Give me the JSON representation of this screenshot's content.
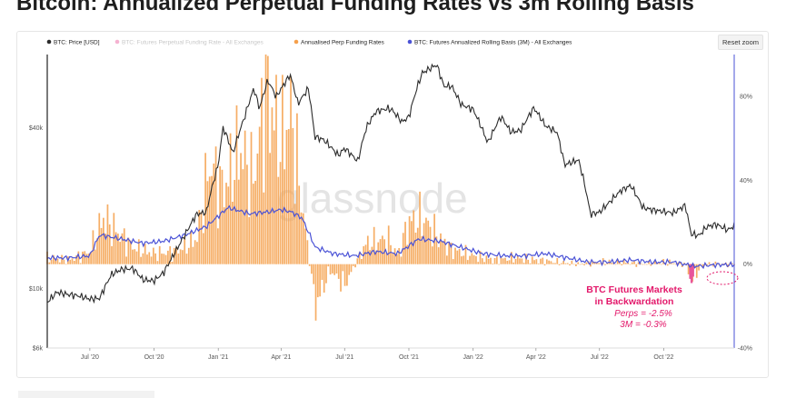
{
  "title": "Bitcoin: Annualized Perpetual Funding Rates vs 3m Rolling Basis",
  "reset_zoom_label": "Reset zoom",
  "watermark": "glassnode",
  "colors": {
    "price": "#2b2b2b",
    "funding": "#e8559a",
    "perp": "#f5a04b",
    "basis": "#4a52d6",
    "annotation": "#e3196b"
  },
  "annotation": {
    "title_line1": "BTC Futures Markets",
    "title_line2": "in Backwardation",
    "perps": "Perps = -2.5%",
    "basis": "3M = -0.3%"
  },
  "chart_data": {
    "type": "line",
    "title": "Bitcoin: Annualized Perpetual Funding Rates vs 3m Rolling Basis",
    "legend": [
      {
        "name": "BTC: Price [USD]",
        "color": "#2b2b2b",
        "visible": true
      },
      {
        "name": "BTC: Futures Perpetual Funding Rate - All Exchanges",
        "color": "#e8559a",
        "visible": false
      },
      {
        "name": "Annualised Perp Funding Rates",
        "color": "#f5a04b",
        "visible": true
      },
      {
        "name": "BTC: Futures Annualized Rolling Basis (3M) - All Exchanges",
        "color": "#4a52d6",
        "visible": true
      }
    ],
    "legend_placement": "top-left",
    "x_ticks": [
      "Jul '20",
      "Oct '20",
      "Jan '21",
      "Apr '21",
      "Jul '21",
      "Oct '21",
      "Jan '22",
      "Apr '22",
      "Jul '22",
      "Oct '22"
    ],
    "x_range": [
      "2020-05-01",
      "2023-01-10"
    ],
    "y_left": {
      "scale": "log",
      "ticks": [
        "$6k",
        "$10k",
        "$40k"
      ],
      "tick_values": [
        6000,
        10000,
        40000
      ],
      "range": [
        6000,
        75000
      ]
    },
    "y_right": {
      "ticks": [
        "-40%",
        "0%",
        "40%",
        "80%"
      ],
      "tick_values": [
        -40,
        0,
        40,
        80
      ],
      "range": [
        -40,
        100
      ]
    },
    "grid": false,
    "series": [
      {
        "name": "BTC: Price [USD]",
        "axis": "left",
        "x": [
          "2020-05-01",
          "2020-05-15",
          "2020-06-01",
          "2020-06-15",
          "2020-07-01",
          "2020-07-15",
          "2020-08-01",
          "2020-08-15",
          "2020-09-01",
          "2020-09-15",
          "2020-10-01",
          "2020-10-15",
          "2020-11-01",
          "2020-11-15",
          "2020-12-01",
          "2020-12-15",
          "2021-01-01",
          "2021-01-08",
          "2021-01-22",
          "2021-02-08",
          "2021-02-21",
          "2021-03-01",
          "2021-03-13",
          "2021-03-25",
          "2021-04-14",
          "2021-04-25",
          "2021-05-10",
          "2021-05-19",
          "2021-06-01",
          "2021-06-22",
          "2021-07-01",
          "2021-07-20",
          "2021-08-01",
          "2021-08-15",
          "2021-09-01",
          "2021-09-07",
          "2021-09-21",
          "2021-10-01",
          "2021-10-20",
          "2021-11-10",
          "2021-11-20",
          "2021-12-01",
          "2021-12-15",
          "2022-01-01",
          "2022-01-22",
          "2022-02-10",
          "2022-02-24",
          "2022-03-10",
          "2022-03-29",
          "2022-04-15",
          "2022-05-01",
          "2022-05-12",
          "2022-06-01",
          "2022-06-18",
          "2022-07-01",
          "2022-07-15",
          "2022-08-01",
          "2022-08-15",
          "2022-09-01",
          "2022-09-15",
          "2022-10-01",
          "2022-10-15",
          "2022-11-01",
          "2022-11-09",
          "2022-11-21",
          "2022-12-01",
          "2022-12-15",
          "2023-01-01",
          "2023-01-10"
        ],
        "values": [
          8900,
          9700,
          9500,
          9400,
          9150,
          9200,
          11300,
          11800,
          11900,
          10800,
          10700,
          11500,
          13800,
          16000,
          19000,
          19300,
          29000,
          40000,
          32000,
          44000,
          56000,
          47000,
          60000,
          52000,
          63000,
          49000,
          56000,
          37000,
          36000,
          31500,
          33500,
          29900,
          39900,
          46000,
          47100,
          46500,
          42000,
          43800,
          64000,
          68700,
          57000,
          57200,
          48700,
          46800,
          35000,
          44000,
          38500,
          39000,
          47400,
          40500,
          38500,
          29000,
          30300,
          19000,
          19300,
          21000,
          23300,
          24300,
          20100,
          19700,
          19400,
          19200,
          20500,
          16000,
          15800,
          17000,
          17400,
          16550,
          17200
        ]
      },
      {
        "name": "Annualised Perp Funding Rates",
        "axis": "right",
        "x": [
          "2020-05-01",
          "2020-06-01",
          "2020-07-01",
          "2020-07-20",
          "2020-08-10",
          "2020-09-01",
          "2020-10-01",
          "2020-11-01",
          "2020-12-01",
          "2020-12-20",
          "2021-01-08",
          "2021-02-01",
          "2021-02-20",
          "2021-03-10",
          "2021-04-01",
          "2021-04-15",
          "2021-05-01",
          "2021-05-20",
          "2021-06-10",
          "2021-07-01",
          "2021-08-01",
          "2021-09-01",
          "2021-09-15",
          "2021-10-01",
          "2021-10-20",
          "2021-11-15",
          "2021-12-01",
          "2022-01-01",
          "2022-02-01",
          "2022-03-01",
          "2022-04-01",
          "2022-05-01",
          "2022-06-01",
          "2022-07-01",
          "2022-08-01",
          "2022-09-01",
          "2022-10-01",
          "2022-11-01",
          "2022-11-10",
          "2022-11-20",
          "2022-12-01",
          "2023-01-10"
        ],
        "values": [
          3,
          2,
          6,
          22,
          15,
          8,
          5,
          6,
          12,
          48,
          35,
          55,
          40,
          82,
          58,
          72,
          28,
          -20,
          -3,
          -10,
          10,
          12,
          4,
          20,
          22,
          12,
          7,
          4,
          2,
          3,
          2,
          1,
          0,
          1,
          1,
          0,
          1,
          0,
          -8,
          -2.5,
          0,
          0
        ]
      },
      {
        "name": "BTC: Futures Annualized Rolling Basis (3M) - All Exchanges",
        "axis": "right",
        "x": [
          "2020-05-01",
          "2020-06-01",
          "2020-07-01",
          "2020-07-15",
          "2020-08-15",
          "2020-09-15",
          "2020-10-15",
          "2020-11-15",
          "2020-12-15",
          "2021-01-15",
          "2021-02-15",
          "2021-03-15",
          "2021-04-01",
          "2021-04-15",
          "2021-05-01",
          "2021-05-20",
          "2021-06-15",
          "2021-07-15",
          "2021-08-15",
          "2021-09-15",
          "2021-10-15",
          "2021-11-15",
          "2021-12-15",
          "2022-01-15",
          "2022-02-15",
          "2022-03-15",
          "2022-04-15",
          "2022-05-15",
          "2022-06-15",
          "2022-07-15",
          "2022-08-15",
          "2022-09-15",
          "2022-10-15",
          "2022-11-15",
          "2022-12-15",
          "2023-01-10"
        ],
        "values": [
          3,
          3,
          4,
          14,
          12,
          10,
          11,
          14,
          18,
          27,
          24,
          25,
          26,
          25,
          22,
          8,
          5,
          4,
          6,
          5,
          12,
          11,
          8,
          5,
          4,
          4,
          5,
          3,
          1,
          1,
          2,
          1,
          1,
          -1,
          -0.3,
          -0.3
        ]
      }
    ]
  }
}
